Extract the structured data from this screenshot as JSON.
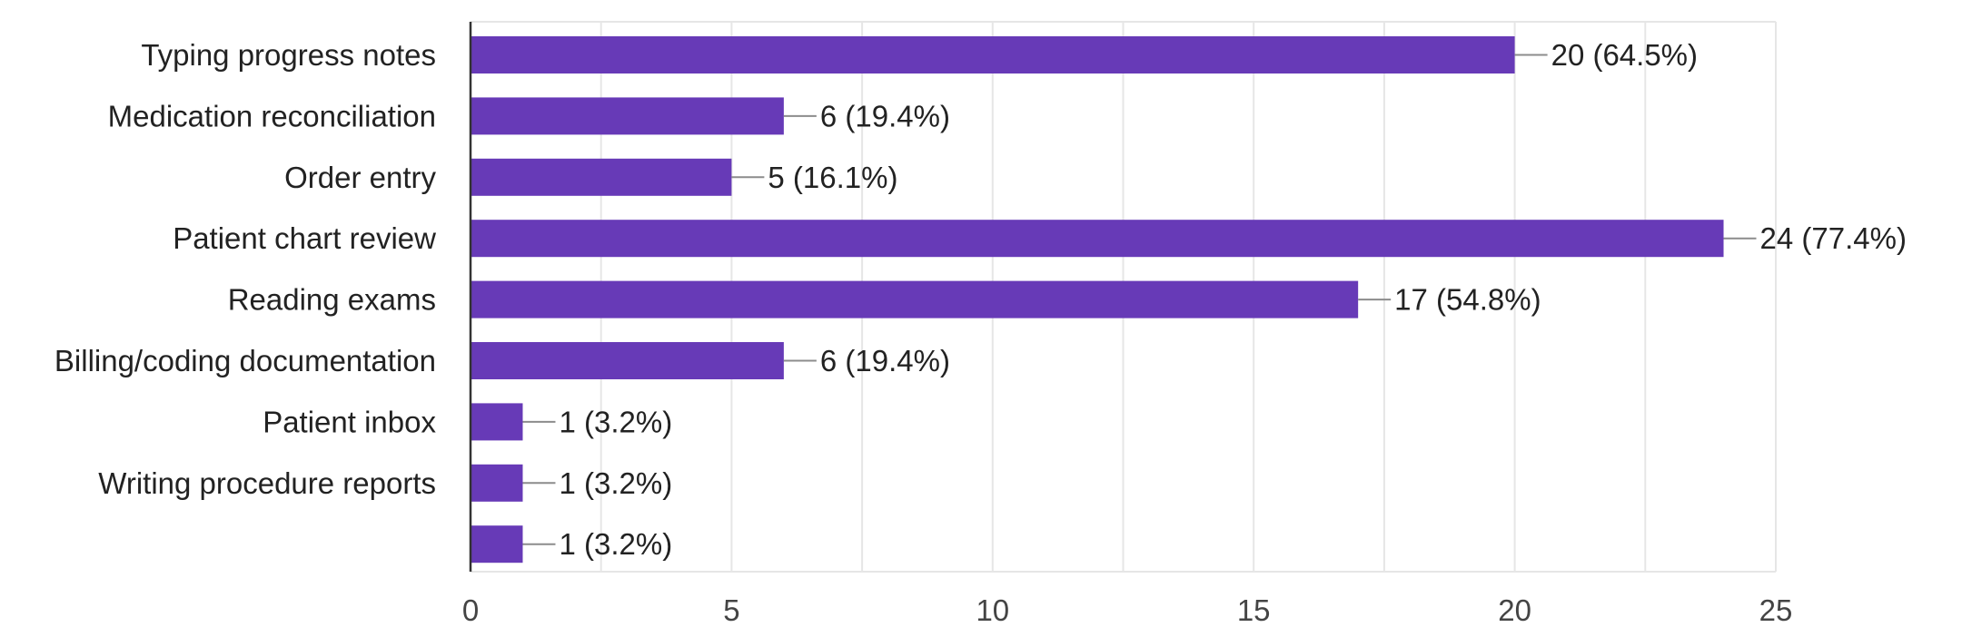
{
  "chart_data": {
    "type": "bar",
    "orientation": "horizontal",
    "title": "",
    "xlabel": "",
    "ylabel": "",
    "xlim": [
      0,
      25
    ],
    "x_ticks": [
      0,
      5,
      10,
      15,
      20,
      25
    ],
    "grid": true,
    "categories": [
      "Typing progress notes",
      "Medication reconciliation",
      "Order entry",
      "Patient chart review",
      "Reading exams",
      "Billing/coding documentation",
      "Patient inbox",
      "Writing procedure reports",
      ""
    ],
    "values": [
      20,
      6,
      5,
      24,
      17,
      6,
      1,
      1,
      1
    ],
    "data_labels": [
      "20 (64.5%)",
      "6 (19.4%)",
      "5 (16.1%)",
      "24 (77.4%)",
      "17 (54.8%)",
      "6 (19.4%)",
      "1 (3.2%)",
      "1 (3.2%)",
      "1 (3.2%)"
    ],
    "colors": {
      "bar": "#673ab7",
      "grid": "#e6e6e6",
      "axis": "#333333",
      "leader": "#8c8c8c"
    }
  }
}
